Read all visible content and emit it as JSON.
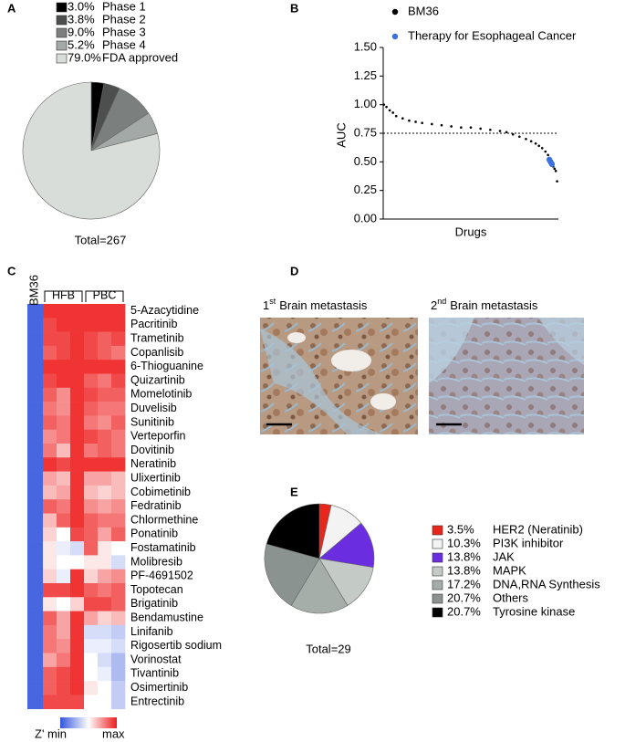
{
  "panel_labels": [
    "A",
    "B",
    "C",
    "D",
    "E"
  ],
  "chart_data": [
    {
      "type": "pie",
      "values": [
        3.0,
        3.8,
        9.0,
        5.2,
        79.0
      ],
      "value_labels": [
        "3.0%",
        "3.8%",
        "9.0%",
        "5.2%",
        "79.0%"
      ],
      "categories": [
        "Phase 1",
        "Phase 2",
        "Phase 3",
        "Phase 4",
        "FDA approved"
      ],
      "colors": [
        "#000000",
        "#4d4f4f",
        "#7b807e",
        "#a3a9a6",
        "#d9ddd9"
      ],
      "total_label": "Total=267"
    },
    {
      "type": "scatter",
      "xlabel": "Drugs",
      "ylabel": "AUC",
      "xlim": [
        0,
        270
      ],
      "ylim": [
        0,
        1.5
      ],
      "yticks": [
        {
          "value": 0,
          "label": "0.00"
        },
        {
          "value": 0.25,
          "label": "0.25"
        },
        {
          "value": 0.5,
          "label": "0.50"
        },
        {
          "value": 0.75,
          "label": "0.75"
        },
        {
          "value": 1.0,
          "label": "1.00"
        },
        {
          "value": 1.25,
          "label": "1.25"
        },
        {
          "value": 1.5,
          "label": "1.50"
        }
      ],
      "hline": 0.75,
      "series": [
        {
          "name": "BM36",
          "color": "#000000",
          "x": [
            1,
            5,
            10,
            15,
            20,
            30,
            40,
            50,
            60,
            75,
            90,
            105,
            120,
            135,
            150,
            165,
            180,
            190,
            200,
            210,
            220,
            228,
            235,
            240,
            245,
            250,
            254,
            262,
            264,
            266,
            268
          ],
          "values": [
            1.0,
            0.98,
            0.95,
            0.93,
            0.9,
            0.88,
            0.86,
            0.85,
            0.84,
            0.83,
            0.82,
            0.81,
            0.8,
            0.8,
            0.79,
            0.78,
            0.77,
            0.76,
            0.74,
            0.72,
            0.7,
            0.68,
            0.66,
            0.64,
            0.62,
            0.59,
            0.56,
            0.46,
            0.44,
            0.42,
            0.33
          ]
        },
        {
          "name": "Therapy for Esophageal Cancer",
          "color": "#3b6fe0",
          "x": [
            256,
            258,
            260
          ],
          "values": [
            0.52,
            0.5,
            0.48
          ]
        }
      ]
    },
    {
      "type": "heatmap",
      "column_label": "BM36",
      "groups": [
        "HFB",
        "PBC"
      ],
      "zlim": [
        0,
        1
      ],
      "colormap": [
        "#3355dd",
        "#ffffff",
        "#ee1c1c"
      ],
      "colorbar_labels": [
        "Z' min",
        "max"
      ],
      "rows": [
        {
          "name": "5-Azacytidine",
          "color": "#000000",
          "values": [
            0.05,
            0.95,
            0.95,
            0.95,
            0.95,
            0.95,
            0.95
          ]
        },
        {
          "name": "Pacritinib",
          "color": "#5a3fd6",
          "values": [
            0.05,
            0.9,
            0.95,
            0.95,
            0.95,
            0.95,
            0.95
          ]
        },
        {
          "name": "Trametinib",
          "color": "#000000",
          "values": [
            0.05,
            0.9,
            0.9,
            0.95,
            0.9,
            0.85,
            0.9
          ]
        },
        {
          "name": "Copanlisib",
          "color": "#000000",
          "values": [
            0.05,
            0.85,
            0.9,
            0.95,
            0.9,
            0.85,
            0.8
          ]
        },
        {
          "name": "6-Thioguanine",
          "color": "#000000",
          "values": [
            0.05,
            0.95,
            0.95,
            0.95,
            0.95,
            0.95,
            0.95
          ]
        },
        {
          "name": "Quizartinib",
          "color": "#5a3fd6",
          "values": [
            0.05,
            0.9,
            0.95,
            0.95,
            0.85,
            0.8,
            0.9
          ]
        },
        {
          "name": "Momelotinib",
          "color": "#5a3fd6",
          "values": [
            0.05,
            0.85,
            0.75,
            0.95,
            0.9,
            0.85,
            0.85
          ]
        },
        {
          "name": "Duvelisib",
          "color": "#000000",
          "values": [
            0.05,
            0.8,
            0.75,
            0.95,
            0.85,
            0.8,
            0.8
          ]
        },
        {
          "name": "Sunitinib",
          "color": "#000000",
          "values": [
            0.05,
            0.85,
            0.8,
            0.95,
            0.8,
            0.75,
            0.85
          ]
        },
        {
          "name": "Verteporfin",
          "color": "#000000",
          "values": [
            0.05,
            0.75,
            0.8,
            0.95,
            0.9,
            0.85,
            0.8
          ]
        },
        {
          "name": "Dovitinib",
          "color": "#000000",
          "values": [
            0.05,
            0.8,
            0.65,
            0.95,
            0.8,
            0.85,
            0.8
          ]
        },
        {
          "name": "Neratinib",
          "color": "#e8261c",
          "values": [
            0.05,
            0.95,
            0.9,
            0.95,
            0.95,
            0.95,
            0.95
          ]
        },
        {
          "name": "Ulixertinib",
          "color": "#000000",
          "values": [
            0.05,
            0.7,
            0.65,
            0.95,
            0.7,
            0.7,
            0.65
          ]
        },
        {
          "name": "Cobimetinib",
          "color": "#000000",
          "values": [
            0.05,
            0.65,
            0.7,
            0.95,
            0.65,
            0.6,
            0.65
          ]
        },
        {
          "name": "Fedratinib",
          "color": "#5a3fd6",
          "values": [
            0.05,
            0.85,
            0.8,
            0.95,
            0.75,
            0.7,
            0.75
          ]
        },
        {
          "name": "Chlormethine",
          "color": "#000000",
          "values": [
            0.05,
            0.65,
            0.85,
            0.95,
            0.85,
            0.8,
            0.8
          ]
        },
        {
          "name": "Ponatinib",
          "color": "#000000",
          "values": [
            0.05,
            0.6,
            0.5,
            0.9,
            0.85,
            0.7,
            0.85
          ]
        },
        {
          "name": "Fostamatinib",
          "color": "#000000",
          "values": [
            0.05,
            0.55,
            0.45,
            0.4,
            0.85,
            0.55,
            0.5
          ]
        },
        {
          "name": "Molibresib",
          "color": "#000000",
          "values": [
            0.05,
            0.55,
            0.5,
            0.5,
            0.55,
            0.55,
            0.4
          ]
        },
        {
          "name": "PF-4691502",
          "color": "#000000",
          "values": [
            0.05,
            0.6,
            0.45,
            0.95,
            0.6,
            0.7,
            0.75
          ]
        },
        {
          "name": "Topotecan",
          "color": "#000000",
          "values": [
            0.05,
            0.9,
            0.9,
            0.95,
            0.85,
            0.8,
            0.85
          ]
        },
        {
          "name": "Brigatinib",
          "color": "#000000",
          "values": [
            0.05,
            0.55,
            0.5,
            0.6,
            0.9,
            0.9,
            0.85
          ]
        },
        {
          "name": "Bendamustine",
          "color": "#000000",
          "values": [
            0.05,
            0.85,
            0.7,
            0.95,
            0.7,
            0.6,
            0.65
          ]
        },
        {
          "name": "Linifanib",
          "color": "#000000",
          "values": [
            0.05,
            0.8,
            0.7,
            0.95,
            0.4,
            0.4,
            0.35
          ]
        },
        {
          "name": "Rigosertib sodium",
          "color": "#000000",
          "values": [
            0.05,
            0.8,
            0.75,
            0.95,
            0.45,
            0.45,
            0.4
          ]
        },
        {
          "name": "Vorinostat",
          "color": "#000000",
          "values": [
            0.05,
            0.7,
            0.8,
            0.95,
            0.5,
            0.4,
            0.3
          ]
        },
        {
          "name": "Tivantinib",
          "color": "#000000",
          "values": [
            0.05,
            0.85,
            0.9,
            0.95,
            0.5,
            0.45,
            0.3
          ]
        },
        {
          "name": "Osimertinib",
          "color": "#000000",
          "values": [
            0.05,
            0.85,
            0.9,
            0.95,
            0.55,
            0.5,
            0.35
          ]
        },
        {
          "name": "Entrectinib",
          "color": "#000000",
          "values": [
            0.05,
            0.9,
            0.9,
            0.9,
            0.5,
            0.5,
            0.35
          ]
        }
      ]
    },
    {
      "type": "pie",
      "values": [
        3.5,
        10.3,
        13.8,
        13.8,
        17.2,
        20.7,
        20.7
      ],
      "value_labels": [
        "3.5%",
        "10.3%",
        "13.8%",
        "13.8%",
        "17.2%",
        "20.7%",
        "20.7%"
      ],
      "categories": [
        "HER2 (Neratinib)",
        "PI3K inhibitor",
        "JAK",
        "MAPK",
        "DNA,RNA Synthesis",
        "Others",
        "Tyrosine kinase"
      ],
      "colors": [
        "#e8261c",
        "#f3f3f3",
        "#6a2ee0",
        "#c4cbc7",
        "#a6aeaa",
        "#8a9390",
        "#000000"
      ],
      "total_label": "Total=29"
    }
  ],
  "panel_d": {
    "images": [
      {
        "ordinal": "1",
        "suffix": "st",
        "title": "Brain metastasis"
      },
      {
        "ordinal": "2",
        "suffix": "nd",
        "title": "Brain metastasis"
      }
    ]
  }
}
